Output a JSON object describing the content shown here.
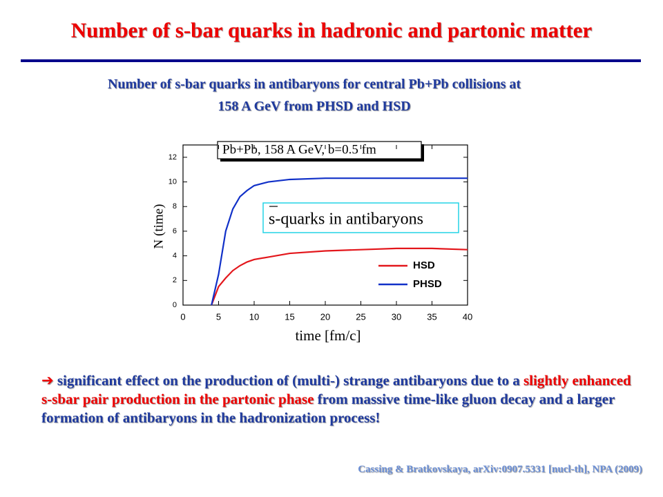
{
  "title": "Number of s-bar quarks in hadronic and partonic matter",
  "subtitle": [
    "Number of s-bar quarks in antibaryons for central Pb+Pb collisions at",
    "158 A GeV from PHSD and HSD"
  ],
  "chart_data": {
    "type": "line",
    "label": "Pb+Pb, 158 A GeV,  b=0.5 fm",
    "annotation": "s-quarks in antibaryons",
    "x_label": "time [fm/c]",
    "y_label": "N (time)",
    "x": [
      4,
      5,
      6,
      7,
      8,
      9,
      10,
      12,
      15,
      20,
      25,
      30,
      35,
      40
    ],
    "series": [
      {
        "name": "HSD",
        "color": "#e3161b",
        "values": [
          0,
          1.5,
          2.2,
          2.8,
          3.2,
          3.5,
          3.7,
          3.9,
          4.2,
          4.4,
          4.5,
          4.6,
          4.6,
          4.5
        ]
      },
      {
        "name": "PHSD",
        "color": "#1030c8",
        "values": [
          0,
          2.5,
          6,
          7.8,
          8.8,
          9.3,
          9.7,
          10,
          10.2,
          10.3,
          10.3,
          10.3,
          10.3,
          10.3
        ]
      }
    ],
    "xlim": [
      0,
      40
    ],
    "xticks": [
      0,
      5,
      10,
      15,
      20,
      25,
      30,
      35,
      40
    ],
    "ylim": [
      0,
      13
    ],
    "yticks": [
      0,
      2,
      4,
      6,
      8,
      10,
      12
    ],
    "legend": "lower right"
  },
  "body": [
    "significant effect on the production of (multi-) strange antibaryons due to a",
    "slightly enhanced s-sbar pair production in the partonic phase",
    "from massive time-like gluon decay and a larger formation of antibaryons in the hadronization process!"
  ],
  "citation": "Cassing & Bratkovskaya,  arXiv:0907.5331 [nucl-th], NPA (2009)"
}
